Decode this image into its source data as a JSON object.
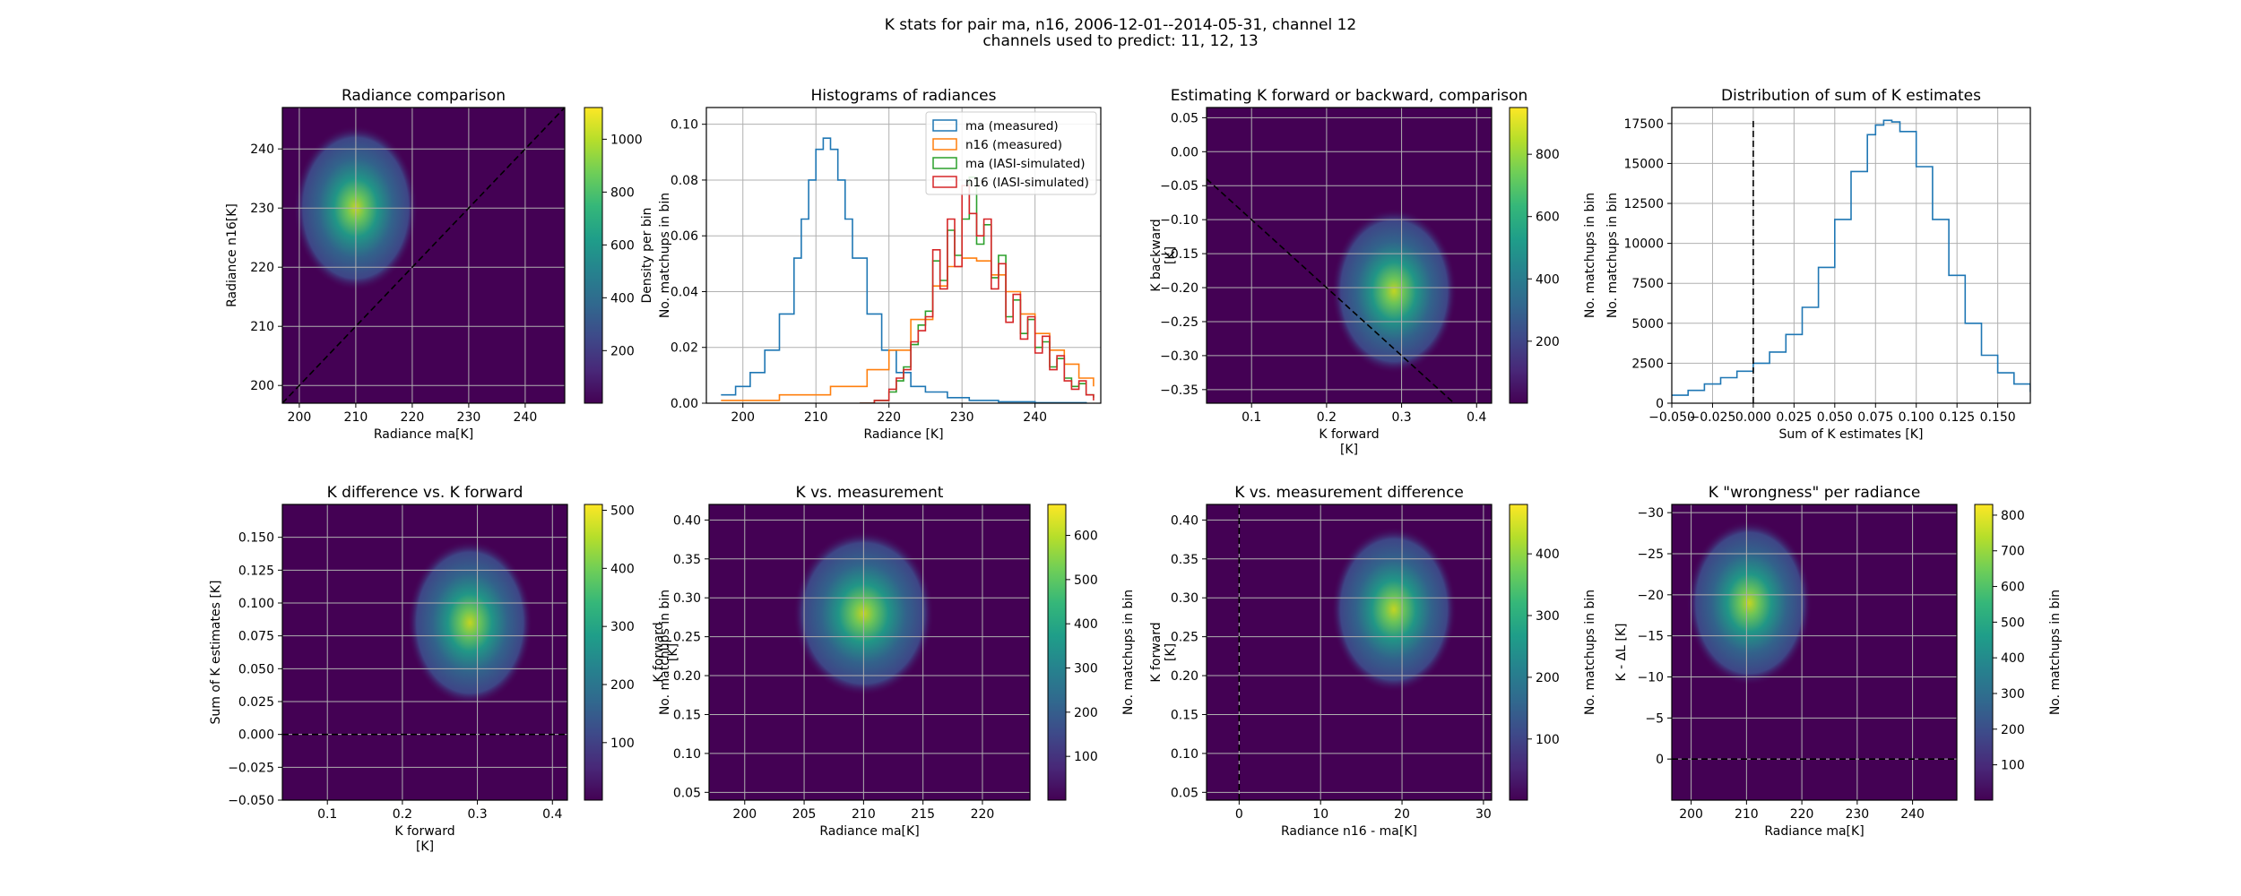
{
  "figure": {
    "suptitle_line1": "K stats for pair ma, n16, 2006-12-01--2014-05-31, channel 12",
    "suptitle_line2": "channels used to predict: 11, 12, 13"
  },
  "colormap": [
    "#440154",
    "#482878",
    "#3e4989",
    "#31688e",
    "#26828e",
    "#1f9e89",
    "#35b779",
    "#6ece58",
    "#b5de2b",
    "#fde725"
  ],
  "chart_data": [
    {
      "id": "p1",
      "type": "heatmap",
      "title": "Radiance comparison",
      "xlabel": "Radiance ma[K]",
      "ylabel": "Radiance n16[K]",
      "xlim": [
        197,
        247
      ],
      "ylim": [
        197,
        247
      ],
      "xticks": [
        200,
        210,
        220,
        230,
        240
      ],
      "yticks": [
        200,
        210,
        220,
        230,
        240
      ],
      "density_peak": {
        "x": 210,
        "y": 230
      },
      "reference_line": {
        "style": "dashed",
        "points": [
          [
            197,
            197
          ],
          [
            247,
            247
          ]
        ]
      },
      "colorbar": {
        "label": "No. matchups in bin",
        "lim": [
          1,
          1120
        ],
        "ticks": [
          200,
          400,
          600,
          800,
          1000
        ]
      }
    },
    {
      "id": "p2",
      "type": "line",
      "title": "Histograms of radiances",
      "xlabel": "Radiance [K]",
      "ylabel": "Density per bin",
      "xlim": [
        195,
        249
      ],
      "ylim": [
        0,
        0.106
      ],
      "xticks": [
        200,
        210,
        220,
        230,
        240
      ],
      "yticks": [
        0.0,
        0.02,
        0.04,
        0.06,
        0.08,
        0.1
      ],
      "legend": {
        "placement": "upper-right"
      },
      "series": [
        {
          "name": "ma (measured)",
          "color": "#1f77b4",
          "x": [
            197,
            199,
            201,
            203,
            205,
            207,
            208,
            209,
            210,
            211,
            212,
            213,
            214,
            215,
            217,
            219,
            221,
            223,
            225,
            228,
            231,
            235,
            240,
            247
          ],
          "y": [
            0.003,
            0.006,
            0.011,
            0.019,
            0.032,
            0.052,
            0.066,
            0.08,
            0.091,
            0.095,
            0.091,
            0.08,
            0.066,
            0.052,
            0.032,
            0.019,
            0.011,
            0.006,
            0.004,
            0.002,
            0.001,
            0.0005,
            0.0002,
            0.0001
          ]
        },
        {
          "name": "n16 (measured)",
          "color": "#ff7f0e",
          "x": [
            197,
            205,
            212,
            217,
            220,
            223,
            226,
            228,
            230,
            232,
            234,
            236,
            238,
            240,
            242,
            244,
            246,
            248
          ],
          "y": [
            0.001,
            0.003,
            0.006,
            0.012,
            0.019,
            0.03,
            0.042,
            0.049,
            0.052,
            0.051,
            0.046,
            0.04,
            0.032,
            0.025,
            0.019,
            0.014,
            0.009,
            0.006
          ]
        },
        {
          "name": "ma (IASI-simulated)",
          "color": "#2ca02c",
          "x": [
            216,
            218,
            220,
            221,
            222,
            223,
            224,
            225,
            226,
            227,
            228,
            229,
            230,
            231,
            232,
            233,
            234,
            235,
            236,
            237,
            238,
            239,
            240,
            241,
            242,
            243,
            244,
            245,
            246,
            247,
            248
          ],
          "y": [
            0.0,
            0.001,
            0.004,
            0.008,
            0.013,
            0.021,
            0.028,
            0.033,
            0.051,
            0.044,
            0.062,
            0.053,
            0.066,
            0.081,
            0.057,
            0.064,
            0.045,
            0.053,
            0.031,
            0.037,
            0.025,
            0.03,
            0.02,
            0.022,
            0.013,
            0.016,
            0.009,
            0.006,
            0.007,
            0.003,
            0.002
          ]
        },
        {
          "name": "n16 (IASI-simulated)",
          "color": "#d62728",
          "x": [
            216,
            218,
            220,
            221,
            222,
            223,
            224,
            225,
            226,
            227,
            228,
            229,
            230,
            231,
            232,
            233,
            234,
            235,
            236,
            237,
            238,
            239,
            240,
            241,
            242,
            243,
            244,
            245,
            246,
            247,
            248
          ],
          "y": [
            0.0,
            0.001,
            0.005,
            0.009,
            0.012,
            0.022,
            0.026,
            0.031,
            0.055,
            0.041,
            0.066,
            0.049,
            0.078,
            0.068,
            0.06,
            0.066,
            0.041,
            0.05,
            0.029,
            0.039,
            0.023,
            0.031,
            0.018,
            0.024,
            0.012,
            0.017,
            0.008,
            0.005,
            0.008,
            0.003,
            0.001
          ]
        }
      ]
    },
    {
      "id": "p3",
      "type": "heatmap",
      "title": "Estimating K forward or backward, comparison",
      "xlabel": "K forward",
      "xlabel2": "[K]",
      "ylabel": "K backward",
      "ylabel2": "[K]",
      "xlim": [
        0.04,
        0.42
      ],
      "ylim": [
        -0.37,
        0.065
      ],
      "xticks": [
        0.1,
        0.2,
        0.3,
        0.4
      ],
      "yticks": [
        -0.35,
        -0.3,
        -0.25,
        -0.2,
        -0.15,
        -0.1,
        -0.05,
        0.0,
        0.05
      ],
      "density_peak": {
        "x": 0.29,
        "y": -0.205
      },
      "reference_line": {
        "style": "dashed",
        "points": [
          [
            0.04,
            -0.04
          ],
          [
            0.37,
            -0.37
          ]
        ]
      },
      "colorbar": {
        "label": "No. matchups in bin",
        "lim": [
          1,
          950
        ],
        "ticks": [
          200,
          400,
          600,
          800
        ]
      }
    },
    {
      "id": "p4",
      "type": "line",
      "title": "Distribution of sum of K estimates",
      "xlabel": "Sum of K estimates [K]",
      "ylabel": "No. matchups in bin",
      "xlim": [
        -0.05,
        0.17
      ],
      "ylim": [
        0,
        18500
      ],
      "xticks": [
        -0.05,
        -0.025,
        0.0,
        0.025,
        0.05,
        0.075,
        0.1,
        0.125,
        0.15
      ],
      "xtick_labels": [
        "−0.050",
        "−0.025",
        "0.000",
        "0.025",
        "0.050",
        "0.075",
        "0.100",
        "0.125",
        "0.150"
      ],
      "yticks": [
        0,
        2500,
        5000,
        7500,
        10000,
        12500,
        15000,
        17500
      ],
      "vline": {
        "x": 0.0,
        "style": "dashed",
        "y_top": 17800
      },
      "series": [
        {
          "name": "Sum of K estimates",
          "color": "#1f77b4",
          "x": [
            -0.05,
            -0.04,
            -0.03,
            -0.02,
            -0.01,
            0.0,
            0.01,
            0.02,
            0.03,
            0.04,
            0.05,
            0.06,
            0.07,
            0.075,
            0.08,
            0.085,
            0.09,
            0.1,
            0.11,
            0.12,
            0.13,
            0.14,
            0.15,
            0.16,
            0.17
          ],
          "y": [
            500,
            800,
            1200,
            1600,
            2000,
            2500,
            3200,
            4300,
            6000,
            8500,
            11500,
            14500,
            16800,
            17400,
            17700,
            17600,
            17000,
            14800,
            11500,
            8000,
            5000,
            3000,
            1900,
            1200,
            700
          ]
        }
      ]
    },
    {
      "id": "p5",
      "type": "heatmap",
      "title": "K difference vs. K forward",
      "xlabel": "K forward",
      "xlabel2": "[K]",
      "ylabel": "Sum of K estimates [K]",
      "xlim": [
        0.04,
        0.42
      ],
      "ylim": [
        -0.05,
        0.175
      ],
      "xticks": [
        0.1,
        0.2,
        0.3,
        0.4
      ],
      "yticks": [
        -0.05,
        -0.025,
        0.0,
        0.025,
        0.05,
        0.075,
        0.1,
        0.125,
        0.15
      ],
      "ytick_labels": [
        "−0.050",
        "−0.025",
        "0.000",
        "0.025",
        "0.050",
        "0.075",
        "0.100",
        "0.125",
        "0.150"
      ],
      "density_peak": {
        "x": 0.29,
        "y": 0.085
      },
      "reference_line": {
        "style": "dashed",
        "points": [
          [
            0.04,
            0.0
          ],
          [
            0.42,
            0.0
          ]
        ]
      },
      "colorbar": {
        "label": "No. matchups in bin",
        "lim": [
          1,
          510
        ],
        "ticks": [
          100,
          200,
          300,
          400,
          500
        ]
      }
    },
    {
      "id": "p6",
      "type": "heatmap",
      "title": "K vs. measurement",
      "xlabel": "Radiance ma[K]",
      "ylabel": "K forward",
      "ylabel2": "[K]",
      "xlim": [
        197,
        224
      ],
      "ylim": [
        0.04,
        0.42
      ],
      "xticks": [
        200,
        205,
        210,
        215,
        220
      ],
      "yticks": [
        0.05,
        0.1,
        0.15,
        0.2,
        0.25,
        0.3,
        0.35,
        0.4
      ],
      "density_peak": {
        "x": 210,
        "y": 0.28
      },
      "colorbar": {
        "label": "No. matchups in bin",
        "lim": [
          1,
          670
        ],
        "ticks": [
          100,
          200,
          300,
          400,
          500,
          600
        ]
      }
    },
    {
      "id": "p7",
      "type": "heatmap",
      "title": "K vs. measurement difference",
      "xlabel": "Radiance n16 - ma[K]",
      "ylabel": "K forward",
      "ylabel2": "[K]",
      "xlim": [
        -4,
        31
      ],
      "ylim": [
        0.04,
        0.42
      ],
      "xticks": [
        0,
        10,
        20,
        30
      ],
      "yticks": [
        0.05,
        0.1,
        0.15,
        0.2,
        0.25,
        0.3,
        0.35,
        0.4
      ],
      "density_peak": {
        "x": 19,
        "y": 0.285
      },
      "reference_line": {
        "style": "dashed",
        "points": [
          [
            0,
            0.04
          ],
          [
            0,
            0.42
          ]
        ]
      },
      "colorbar": {
        "label": "No. matchups in bin",
        "lim": [
          1,
          480
        ],
        "ticks": [
          100,
          200,
          300,
          400
        ]
      }
    },
    {
      "id": "p8",
      "type": "heatmap",
      "title": "K \"wrongness\" per radiance",
      "xlabel": "Radiance ma[K]",
      "ylabel": "K - ΔL [K]",
      "xlim": [
        196.5,
        248
      ],
      "ylim": [
        5,
        -31
      ],
      "inverted_y": true,
      "xticks": [
        200,
        210,
        220,
        230,
        240
      ],
      "yticks": [
        0,
        -5,
        -10,
        -15,
        -20,
        -25,
        -30
      ],
      "ytick_labels": [
        "0",
        "−5",
        "−10",
        "−15",
        "−20",
        "−25",
        "−30"
      ],
      "density_peak": {
        "x": 210.5,
        "y": -19
      },
      "reference_line": {
        "style": "dashed",
        "points": [
          [
            196.5,
            0
          ],
          [
            248,
            0
          ]
        ]
      },
      "colorbar": {
        "label": "No. matchups in bin",
        "lim": [
          1,
          830
        ],
        "ticks": [
          100,
          200,
          300,
          400,
          500,
          600,
          700,
          800
        ]
      }
    }
  ]
}
